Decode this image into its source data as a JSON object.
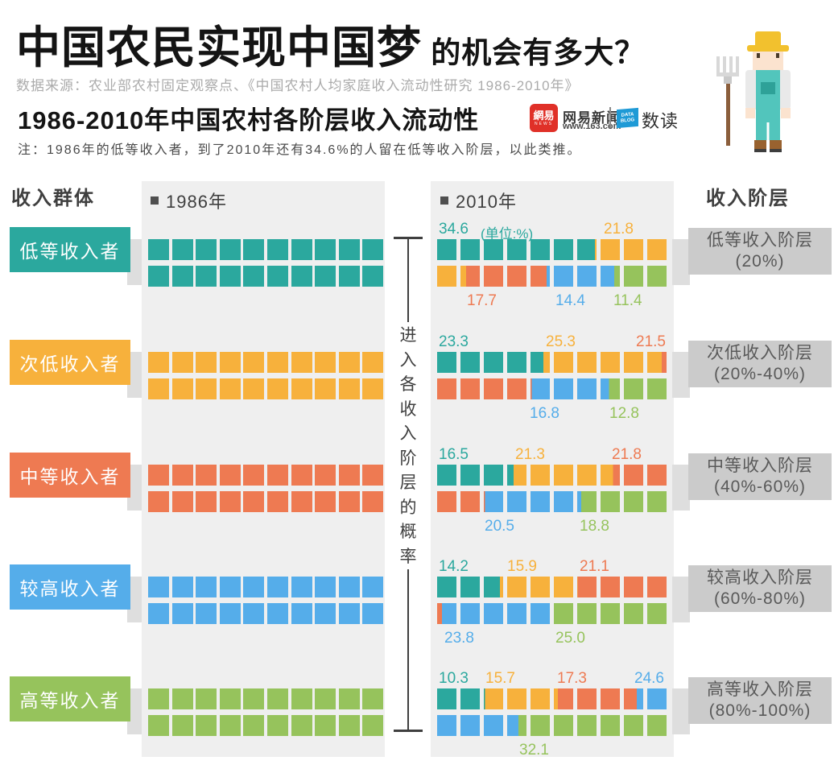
{
  "page": {
    "title_main": "中国农民实现中国梦",
    "title_suffix": " 的机会有多大？",
    "source": "数据来源：农业部农村固定观察点、《中国农村人均家庭收入流动性研究 1986-2010年》",
    "section_title": "1986-2010年中国农村各阶层收入流动性",
    "note": "注：1986年的低等收入者，到了2010年还有34.6%的人留在低等收入阶层，以此类推。"
  },
  "logo": {
    "brand": "網易",
    "brand_sub": "NEWS",
    "news_name": "网易新闻",
    "news_url": "www.163.com",
    "data_word1": "DATA",
    "data_word2": "BLOG",
    "shudu": "数读"
  },
  "columns": {
    "left_header": "收入群体",
    "year_1986": "1986年",
    "year_2010": "2010年",
    "right_header": "收入阶层",
    "center_axis": "进入各收入阶层的概率"
  },
  "colors": {
    "teal": "#2BA89E",
    "yellow": "#F7B13C",
    "orange": "#EE7A52",
    "blue": "#55ADEA",
    "green": "#96C35C",
    "panel": "#EFEFEF",
    "label_box_gray": "#CBCBCB",
    "netease_red": "#E03028",
    "datablog_blue": "#1E9AD6"
  },
  "chart_data": {
    "type": "waffle-transition",
    "unit": "%",
    "square_value_percent": 5,
    "squares_per_group": 20,
    "series": [
      "低等收入阶层",
      "次低收入阶层",
      "中等收入阶层",
      "较高收入阶层",
      "高等收入阶层"
    ],
    "series_colors": [
      "#2BA89E",
      "#F7B13C",
      "#EE7A52",
      "#55ADEA",
      "#96C35C"
    ],
    "groups": [
      {
        "label_1986": "低等收入者",
        "label_2010": "低等收入阶层",
        "range_2010": "(20%)",
        "values_2010": [
          34.6,
          21.8,
          17.7,
          14.4,
          11.4
        ],
        "unit_label": {
          "text": "(单位:%)",
          "x": 62
        },
        "labels_top": [
          {
            "text": "34.6",
            "series": 0,
            "x": 10
          },
          {
            "text": "21.8",
            "series": 1,
            "x": 215
          }
        ],
        "labels_bottom": [
          {
            "text": "17.7",
            "series": 2,
            "x": 45
          },
          {
            "text": "14.4",
            "series": 3,
            "x": 155
          },
          {
            "text": "11.4",
            "series": 4,
            "x": 227
          }
        ]
      },
      {
        "label_1986": "次低收入者",
        "label_2010": "次低收入阶层",
        "range_2010": "(20%-40%)",
        "values_2010": [
          23.3,
          25.3,
          21.5,
          16.8,
          12.8
        ],
        "labels_top": [
          {
            "text": "23.3",
            "series": 0,
            "x": 10
          },
          {
            "text": "25.3",
            "series": 1,
            "x": 143
          },
          {
            "text": "21.5",
            "series": 2,
            "x": 255
          }
        ],
        "labels_bottom": [
          {
            "text": "16.8",
            "series": 3,
            "x": 123
          },
          {
            "text": "12.8",
            "series": 4,
            "x": 222
          }
        ]
      },
      {
        "label_1986": "中等收入者",
        "label_2010": "中等收入阶层",
        "range_2010": "(40%-60%)",
        "values_2010": [
          16.5,
          21.3,
          21.8,
          20.5,
          18.8
        ],
        "labels_top": [
          {
            "text": "16.5",
            "series": 0,
            "x": 10
          },
          {
            "text": "21.3",
            "series": 1,
            "x": 105
          },
          {
            "text": "21.8",
            "series": 2,
            "x": 225
          }
        ],
        "labels_bottom": [
          {
            "text": "20.5",
            "series": 3,
            "x": 67
          },
          {
            "text": "18.8",
            "series": 4,
            "x": 185
          }
        ]
      },
      {
        "label_1986": "较高收入者",
        "label_2010": "较高收入阶层",
        "range_2010": "(60%-80%)",
        "values_2010": [
          14.2,
          15.9,
          21.1,
          23.8,
          25.0
        ],
        "labels_top": [
          {
            "text": "14.2",
            "series": 0,
            "x": 10
          },
          {
            "text": "15.9",
            "series": 1,
            "x": 95
          },
          {
            "text": "21.1",
            "series": 2,
            "x": 185
          }
        ],
        "labels_bottom": [
          {
            "text": "23.8",
            "series": 3,
            "x": 17
          },
          {
            "text": "25.0",
            "series": 4,
            "x": 155
          }
        ]
      },
      {
        "label_1986": "高等收入者",
        "label_2010": "高等收入阶层",
        "range_2010": "(80%-100%)",
        "values_2010": [
          10.3,
          15.7,
          17.3,
          24.6,
          32.1
        ],
        "labels_top": [
          {
            "text": "10.3",
            "series": 0,
            "x": 10
          },
          {
            "text": "15.7",
            "series": 1,
            "x": 68
          },
          {
            "text": "17.3",
            "series": 2,
            "x": 157
          },
          {
            "text": "24.6",
            "series": 3,
            "x": 253
          }
        ],
        "labels_bottom": [
          {
            "text": "32.1",
            "series": 4,
            "x": 110
          }
        ]
      }
    ]
  }
}
